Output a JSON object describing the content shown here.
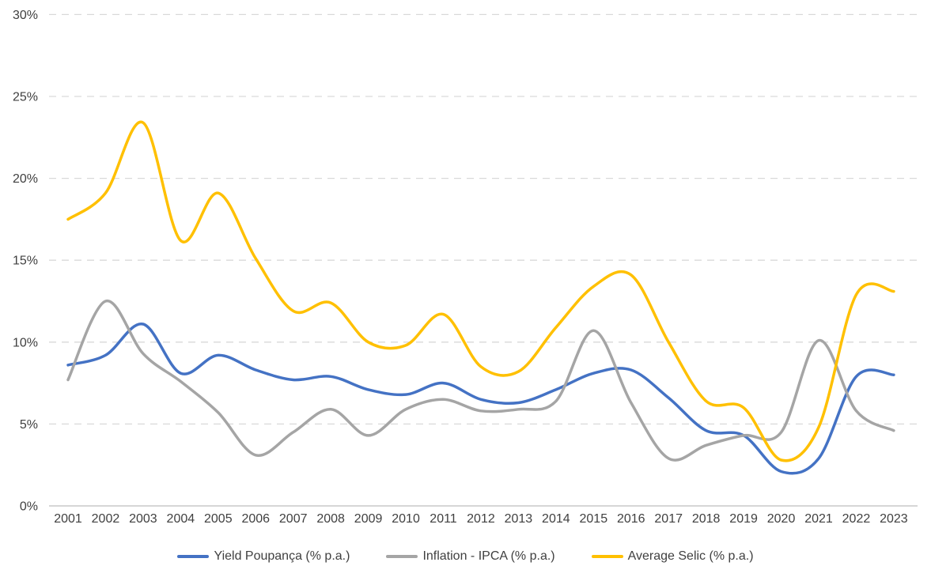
{
  "chart_data": {
    "type": "line",
    "title": "",
    "categories": [
      "2001",
      "2002",
      "2003",
      "2004",
      "2005",
      "2006",
      "2007",
      "2008",
      "2009",
      "2010",
      "2011",
      "2012",
      "2013",
      "2014",
      "2015",
      "2016",
      "2017",
      "2018",
      "2019",
      "2020",
      "2021",
      "2022",
      "2023"
    ],
    "series": [
      {
        "id": "yield-poupanca",
        "name": "Yield Poupança (% p.a.)",
        "color": "#4472C4",
        "values": [
          8.6,
          9.2,
          11.1,
          8.1,
          9.2,
          8.3,
          7.7,
          7.9,
          7.1,
          6.8,
          7.5,
          6.5,
          6.3,
          7.1,
          8.1,
          8.3,
          6.6,
          4.6,
          4.3,
          2.1,
          2.9,
          7.9,
          8.0
        ]
      },
      {
        "id": "inflation-ipca",
        "name": "Inflation - IPCA (% p.a.)",
        "color": "#A5A5A5",
        "values": [
          7.7,
          12.5,
          9.3,
          7.6,
          5.7,
          3.1,
          4.5,
          5.9,
          4.3,
          5.9,
          6.5,
          5.8,
          5.9,
          6.4,
          10.7,
          6.3,
          2.9,
          3.7,
          4.3,
          4.5,
          10.1,
          5.8,
          4.6
        ]
      },
      {
        "id": "average-selic",
        "name": "Average Selic (% p.a.)",
        "color": "#FFC000",
        "values": [
          17.5,
          19.1,
          23.4,
          16.2,
          19.1,
          15.1,
          11.9,
          12.4,
          10.0,
          9.8,
          11.7,
          8.5,
          8.2,
          10.9,
          13.4,
          14.1,
          10.0,
          6.4,
          6.0,
          2.8,
          4.8,
          12.9,
          13.1
        ]
      }
    ],
    "y_axis": {
      "min": 0,
      "max": 30,
      "step": 5,
      "tick_labels": [
        "0%",
        "5%",
        "10%",
        "15%",
        "20%",
        "25%",
        "30%"
      ]
    },
    "x_axis": {
      "tick_labels_shown": "all years 2001-2023"
    },
    "grid": "horizontal-dashed",
    "legend_position": "bottom-center",
    "line_style": "smoothed",
    "colors": {
      "grid": "#D9D9D9",
      "axis_line": "#C9C9C9",
      "text": "#404040",
      "background": "#FFFFFF"
    }
  }
}
